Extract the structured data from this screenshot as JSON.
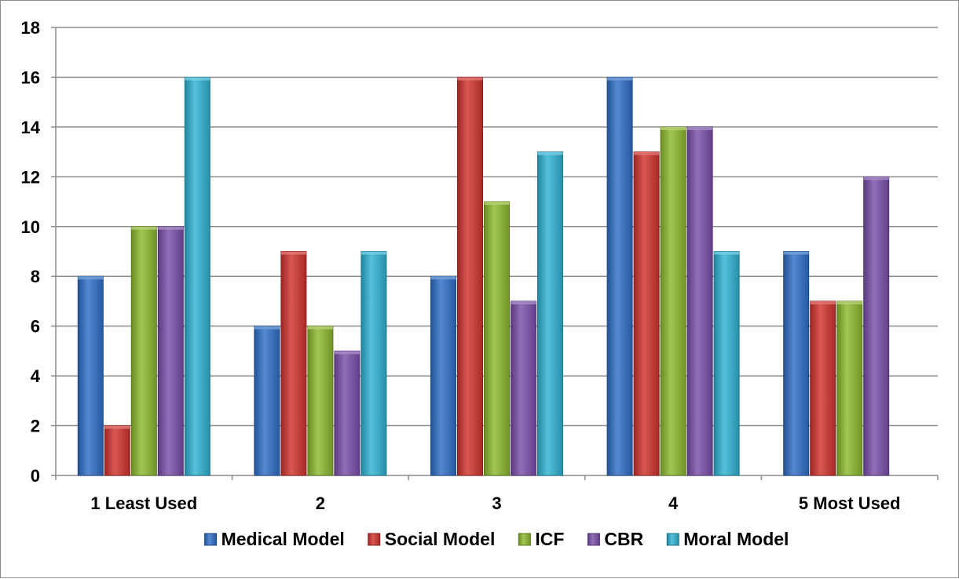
{
  "chart_data": {
    "type": "bar",
    "title": "",
    "xlabel": "",
    "ylabel": "",
    "categories": [
      "1 Least Used",
      "2",
      "3",
      "4",
      "5 Most Used"
    ],
    "ylim": [
      0,
      18
    ],
    "yticks": [
      0,
      2,
      4,
      6,
      8,
      10,
      12,
      14,
      16,
      18
    ],
    "grid": "horizontal",
    "legend_position": "bottom",
    "series": [
      {
        "name": "Medical Model",
        "color": "#2E6FC8",
        "values": [
          8,
          6,
          8,
          16,
          9
        ]
      },
      {
        "name": "Social Model",
        "color": "#D2332E",
        "values": [
          2,
          9,
          16,
          13,
          7
        ]
      },
      {
        "name": "ICF",
        "color": "#8DBA2E",
        "values": [
          10,
          6,
          11,
          14,
          7
        ]
      },
      {
        "name": "CBR",
        "color": "#7A4FAA",
        "values": [
          10,
          5,
          7,
          14,
          12
        ]
      },
      {
        "name": "Moral Model",
        "color": "#2FB3D3",
        "values": [
          16,
          9,
          13,
          9,
          0
        ]
      }
    ]
  }
}
